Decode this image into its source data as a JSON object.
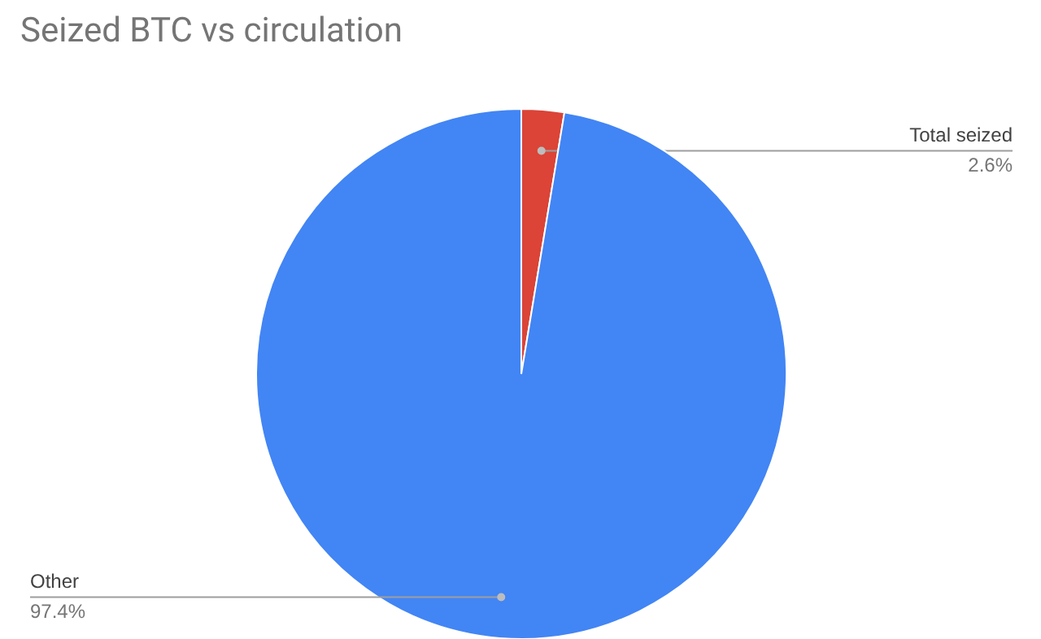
{
  "chart_data": {
    "type": "pie",
    "title": "Seized BTC vs circulation",
    "categories": [
      "Total seized",
      "Other"
    ],
    "values": [
      2.6,
      97.4
    ],
    "colors": [
      "#db4437",
      "#4285f4"
    ],
    "value_labels": [
      "2.6%",
      "97.4%"
    ]
  }
}
